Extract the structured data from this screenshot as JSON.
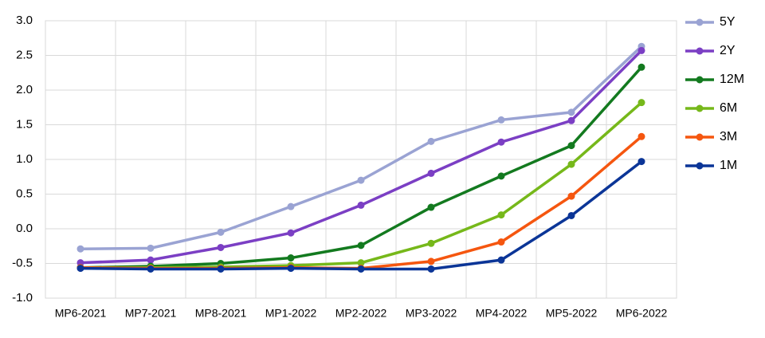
{
  "chart_data": {
    "type": "line",
    "categories": [
      "MP6-2021",
      "MP7-2021",
      "MP8-2021",
      "MP1-2022",
      "MP2-2022",
      "MP3-2022",
      "MP4-2022",
      "MP5-2022",
      "MP6-2022"
    ],
    "series": [
      {
        "name": "5Y",
        "color": "#9aa3d3",
        "values": [
          -0.29,
          -0.28,
          -0.05,
          0.32,
          0.7,
          1.26,
          1.57,
          1.68,
          2.63
        ]
      },
      {
        "name": "2Y",
        "color": "#7b3fc4",
        "values": [
          -0.49,
          -0.45,
          -0.27,
          -0.06,
          0.34,
          0.8,
          1.25,
          1.56,
          2.57
        ]
      },
      {
        "name": "12M",
        "color": "#137a1f",
        "values": [
          -0.56,
          -0.54,
          -0.5,
          -0.42,
          -0.24,
          0.31,
          0.76,
          1.2,
          2.33
        ]
      },
      {
        "name": "6M",
        "color": "#76b81a",
        "values": [
          -0.56,
          -0.56,
          -0.55,
          -0.53,
          -0.49,
          -0.21,
          0.2,
          0.93,
          1.82
        ]
      },
      {
        "name": "3M",
        "color": "#f5560f",
        "values": [
          -0.56,
          -0.57,
          -0.57,
          -0.56,
          -0.57,
          -0.47,
          -0.19,
          0.47,
          1.33
        ]
      },
      {
        "name": "1M",
        "color": "#0b3597",
        "values": [
          -0.57,
          -0.58,
          -0.58,
          -0.57,
          -0.58,
          -0.58,
          -0.45,
          0.19,
          0.97
        ]
      }
    ],
    "ylim": [
      -1.0,
      3.0
    ],
    "yticks": [
      {
        "value": -1,
        "label": "-1.0"
      },
      -0.5,
      {
        "value": 0,
        "label": "0.0"
      },
      0.5,
      {
        "value": 1,
        "label": "1.0"
      },
      1.5,
      {
        "value": 2,
        "label": "2.0"
      },
      2.5,
      {
        "value": 3,
        "label": "3.0"
      }
    ],
    "grid": true,
    "legend": "right"
  }
}
